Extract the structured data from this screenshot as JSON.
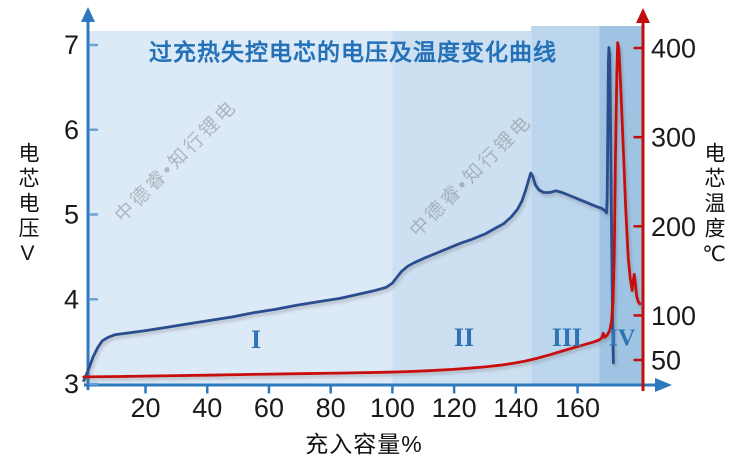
{
  "watermark": {
    "text": "中德睿•知行锂电"
  },
  "chart_data": {
    "type": "line",
    "title": "过充热失控电芯的电压及温度变化曲线",
    "title_color": "#2471b8",
    "x_axis": {
      "label": "充入容量%",
      "ticks": [
        20,
        40,
        60,
        80,
        100,
        120,
        140,
        160
      ],
      "range": [
        0,
        182
      ],
      "color": "#2e78bd"
    },
    "y_axis_left": {
      "label": "电芯电压V",
      "ticks": [
        3,
        4,
        5,
        6,
        7
      ],
      "range": [
        3,
        7
      ],
      "color": "#2e78bd",
      "tick_color": "#6aa3d8"
    },
    "y_axis_right": {
      "label": "电芯温度℃",
      "ticks": [
        50,
        100,
        200,
        300,
        400
      ],
      "range": [
        17,
        430
      ],
      "color": "#c40d0d"
    },
    "regions": [
      {
        "label": "I",
        "from": 0,
        "to": 100,
        "color": "#dce9f6"
      },
      {
        "label": "II",
        "from": 100,
        "to": 145,
        "color": "#cde0f2"
      },
      {
        "label": "III",
        "from": 145,
        "to": 167,
        "color": "#bcd6ee"
      },
      {
        "label": "IV",
        "from": 167,
        "to": 181,
        "color": "#9fc4e3"
      }
    ],
    "series": [
      {
        "name": "电芯电压",
        "axis": "left",
        "color": "#2b4e90",
        "points": [
          [
            0,
            3.04
          ],
          [
            0.8,
            3.11
          ],
          [
            1.8,
            3.2
          ],
          [
            3,
            3.32
          ],
          [
            4.5,
            3.43
          ],
          [
            6,
            3.51
          ],
          [
            7.8,
            3.55
          ],
          [
            10,
            3.58
          ],
          [
            14,
            3.6
          ],
          [
            20,
            3.63
          ],
          [
            27,
            3.67
          ],
          [
            34,
            3.71
          ],
          [
            41,
            3.75
          ],
          [
            48,
            3.79
          ],
          [
            55,
            3.84
          ],
          [
            62,
            3.88
          ],
          [
            69,
            3.93
          ],
          [
            76,
            3.97
          ],
          [
            83,
            4.01
          ],
          [
            89,
            4.06
          ],
          [
            94,
            4.1
          ],
          [
            98,
            4.14
          ],
          [
            100,
            4.19
          ],
          [
            101.5,
            4.26
          ],
          [
            103,
            4.33
          ],
          [
            105,
            4.39
          ],
          [
            107,
            4.43
          ],
          [
            110,
            4.48
          ],
          [
            114,
            4.54
          ],
          [
            118,
            4.6
          ],
          [
            122,
            4.66
          ],
          [
            126,
            4.71
          ],
          [
            130,
            4.77
          ],
          [
            133,
            4.83
          ],
          [
            136,
            4.89
          ],
          [
            138.5,
            4.97
          ],
          [
            140.5,
            5.06
          ],
          [
            142,
            5.16
          ],
          [
            143.3,
            5.3
          ],
          [
            144.8,
            5.49
          ],
          [
            145.5,
            5.45
          ],
          [
            146.3,
            5.35
          ],
          [
            147.5,
            5.29
          ],
          [
            149,
            5.26
          ],
          [
            151,
            5.26
          ],
          [
            153,
            5.28
          ],
          [
            155,
            5.26
          ],
          [
            157,
            5.23
          ],
          [
            159,
            5.2
          ],
          [
            161,
            5.17
          ],
          [
            163,
            5.14
          ],
          [
            165,
            5.11
          ],
          [
            166.5,
            5.09
          ],
          [
            168,
            5.07
          ],
          [
            169,
            5.04
          ],
          [
            169.4,
            5.02
          ],
          [
            169.6,
            5.2
          ],
          [
            169.8,
            6.0
          ],
          [
            170,
            6.8
          ],
          [
            170.15,
            6.97
          ],
          [
            170.4,
            6.88
          ],
          [
            170.7,
            6.0
          ],
          [
            171,
            4.9
          ],
          [
            171.3,
            3.9
          ],
          [
            171.6,
            3.25
          ]
        ]
      },
      {
        "name": "电芯温度",
        "axis": "right",
        "color": "#c90a0a",
        "points": [
          [
            0,
            31
          ],
          [
            12,
            31.5
          ],
          [
            25,
            32.2
          ],
          [
            40,
            33
          ],
          [
            55,
            33.8
          ],
          [
            70,
            34.6
          ],
          [
            85,
            35.4
          ],
          [
            97,
            36.2
          ],
          [
            105,
            37
          ],
          [
            112,
            38
          ],
          [
            119,
            39.3
          ],
          [
            125,
            40.8
          ],
          [
            130,
            42.3
          ],
          [
            135,
            44.2
          ],
          [
            139,
            46.2
          ],
          [
            143,
            48.8
          ],
          [
            147,
            52
          ],
          [
            151,
            55.8
          ],
          [
            155,
            60
          ],
          [
            159,
            64
          ],
          [
            162,
            67
          ],
          [
            165,
            70
          ],
          [
            167,
            72.5
          ],
          [
            167.9,
            75
          ],
          [
            168.3,
            80
          ],
          [
            168.8,
            75.5
          ],
          [
            169.6,
            78
          ],
          [
            170.4,
            83
          ],
          [
            171,
            93
          ],
          [
            171.5,
            115
          ],
          [
            171.9,
            170
          ],
          [
            172.3,
            280
          ],
          [
            172.7,
            370
          ],
          [
            173,
            406
          ],
          [
            173.4,
            398
          ],
          [
            174,
            355
          ],
          [
            174.8,
            290
          ],
          [
            175.6,
            220
          ],
          [
            176.4,
            165
          ],
          [
            177.1,
            141
          ],
          [
            177.7,
            128
          ],
          [
            178.1,
            140
          ],
          [
            178.4,
            146
          ],
          [
            178.8,
            133
          ],
          [
            179.2,
            121
          ],
          [
            179.7,
            115
          ],
          [
            180.2,
            113
          ]
        ]
      }
    ],
    "legend": "none",
    "grid": false
  }
}
